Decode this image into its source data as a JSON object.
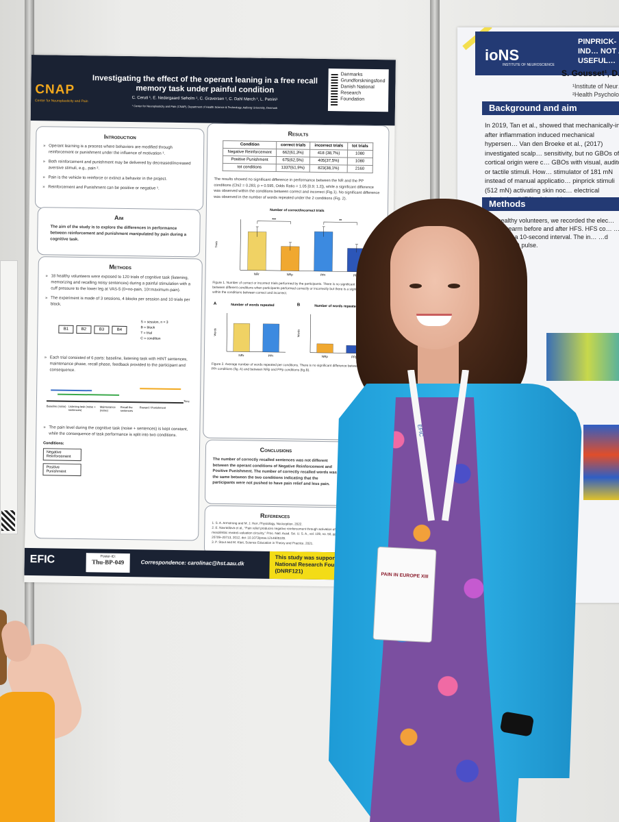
{
  "poster": {
    "org_logo": "CNAP",
    "org_sub": "Center for Neuroplasticity and Pain",
    "title": "Investigating the effect of the operant leaning in a free recall memory task under painful condition",
    "authors": "C. Ceruti ¹, E. Nedergaard Søholm ¹, C. Graversen ¹, C. Dahl Mørch ¹, L. Petrini¹",
    "affiliation": "¹ Center for Neuroplasticity and Pain (CNAP), Department of Health Science & Technology, Aalborg University, Denmark",
    "funder_logo": "Danmarks Grundforskningsfond Danish National Research Foundation",
    "intro": {
      "title": "Introduction",
      "items": [
        "Operant learning is a process where behaviors are modified through reinforcement or punishment under the influence of motivation ¹.",
        "Both reinforcement and punishment may be delivered by decreased/increased aversive stimuli, e.g., pain ².",
        "Pain is the vehicle to reinforce or extinct a behavior in the project.",
        "Reinforcement and Punishment can be positive or negative ¹."
      ]
    },
    "aim": {
      "title": "Aim",
      "text": "The aim of the study is to explore the differences in performance between reinforcement and punishment manipulated by pain during a cognitive task."
    },
    "methods": {
      "title": "Methods",
      "items": [
        "18 healthy volunteers were exposed to 120 trials of cognitive task (listening, memorizing and recalling noisy sentences) during a painful stimulation with a cuff pressure to the lower leg at VAS-5 (0=no-pain, 10=maximum-pain).",
        "The experiment is made of 3 sessions, 4 blocks per session and 10 trials per block."
      ],
      "blocks": [
        "B1",
        "B2",
        "B3",
        "B4"
      ],
      "legend": [
        "S = session, n = 3",
        "B = block",
        "T = trial",
        "C = condition"
      ],
      "items2": [
        "Each trial consisted of 6 parts: baseline, listening task with HINT sentences, maintenance phase, recall phase, feedback provided to the participant and consequence.",
        "The pain level during the cognitive task (noise + sentences) is kept constant, while the consequence of task performance is split into two conditions."
      ],
      "timeline_labels": [
        "Baseline (noise)",
        "Listening task (noise + sentences)",
        "Maintenance (noise)",
        "Recall the sentences",
        "Reward / Punishment",
        "Time"
      ],
      "conditions_title": "Conditions:",
      "conditions": [
        "Negative Reinforcement",
        "Positive Punishment"
      ]
    },
    "results": {
      "title": "Results",
      "table_headers": [
        "Condition",
        "correct trials",
        "incorrect trials",
        "tot trials"
      ],
      "table_rows": [
        [
          "Negative Reinforcement",
          "662(61,3%)",
          "418 (38,7%)",
          "1080"
        ],
        [
          "Positive Punishment",
          "675(62,5%)",
          "405(37,5%)",
          "1080"
        ],
        [
          "tot conditions",
          "1337(61,9%)",
          "823(38,1%)",
          "2160"
        ]
      ],
      "text": "The results showed no significant difference in performance between the NR and the PP conditions (Chi2 = 0.283, p = 0.595, Odds Ratio = 1.05 [0.9; 1.2]), while a significant difference was observed within the conditions between correct and incorrect (Fig.1). No significant difference was observed in the number of words repeated under the 2 conditions (Fig. 2).",
      "fig1_caption": "Figure 1. Number of correct or incorrect trials performed by the participants. There is no significant difference between different conditions when participants performed correctly or incorrectly but there is a significant difference within the conditions between correct and incorrect.",
      "fig2_caption": "Figure 2. Average number of words repeated per conditions. There is no significant difference between NRr and PPr conditions (fig. A) and between NRp and PPp conditions (fig.B)."
    },
    "conclusions": {
      "title": "Conclusions",
      "text": "The number of correctly recalled sentences was not different between the operant conditions of Negative Reinforcement and Positive Punishment. The number of correctly recalled words was the same between the two conditions indicating that the participants were not pushed to have pain relief and less pain."
    },
    "references": {
      "title": "References",
      "items": [
        "1. S. A. Armstrong and M. J. Herr, Physiology, Nociception. 2022.",
        "2. E. Navratilova et al., “Pain relief produces negative reinforcement through activation of mesolimbic reward–valuation circuitry,” Proc. Natl. Acad. Sci. U. S. A., vol. 109, no. 50, pp. 20709–20713, 2012, doi: 10.1073/pnas.1214605109.",
        "3. P. Stout and M. Klett, Science Education in Theory and Practice. 2021."
      ]
    },
    "footer": {
      "efic_logo": "EFIC",
      "poster_id_label": "Poster-ID:",
      "poster_id": "Thu-BP-049",
      "correspondence": "Correspondence: carolinac@hst.aau.dk",
      "funding": "This study was supported by the Danish National Research Foundation (DNRF121)"
    }
  },
  "poster2": {
    "logo": "ioNS",
    "logo_sub": "INSTITUTE OF NEUROSCIENCE",
    "title": "PINPRICK-IND… NOT A USEFUL…",
    "authors": "S. Gousset¹, D.",
    "affiliation": "¹Institute of Neur… ²Health Psycholo…",
    "bg_title": "Background and aim",
    "bg_text": "In 2019, Tan et al., showed that mechanically-in… after inflammation induced mechanical hypersen… Van den Broeke et al., (2017) investigated scalp… sensitivity, but no GBOs of cortical origin were c… GBOs with visual, auditory, or tactile stimuli. How… stimulator of 181 mN instead of manual applicatio… pinprick stimuli (512 mN) activating skin noc… electrical stimulation (HFS) of the skin.",
    "methods_title": "Methods",
    "methods_text": "…ty healthy volunteers, we recorded the elec… …tral forearm before and after HFS. HFS co… …elivered in a 10-second interval. The in… …d (rectangular) pulse."
  },
  "chart_data": [
    {
      "type": "bar",
      "title": "Number of correct/incorrect trials",
      "ylabel": "Trials",
      "categories": [
        "NRr",
        "NRp",
        "PPr",
        "PPp"
      ],
      "values": [
        38,
        24,
        39,
        23
      ],
      "errors": [
        5,
        4,
        5,
        4
      ],
      "colors": [
        "#f0d264",
        "#f0a830",
        "#3c8ae0",
        "#2c56b8"
      ],
      "ylim": [
        0,
        50
      ],
      "significance": [
        "***",
        "**"
      ]
    },
    {
      "type": "bar",
      "panel": "A",
      "title": "Number of words repeated",
      "ylabel": "Words",
      "categories": [
        "NRr",
        "PPr"
      ],
      "values": [
        22,
        22
      ],
      "colors": [
        "#f0d264",
        "#3c8ae0"
      ],
      "ylim": [
        0,
        30
      ]
    },
    {
      "type": "bar",
      "panel": "B",
      "title": "Number of words repeated",
      "ylabel": "Words",
      "categories": [
        "NRp",
        "PPp"
      ],
      "values": [
        7,
        6
      ],
      "colors": [
        "#f0a830",
        "#2c56b8"
      ],
      "ylim": [
        0,
        30
      ]
    }
  ],
  "badge": {
    "event": "PAIN IN EUROPE XIII"
  },
  "lanyard": {
    "brand": "EFIC"
  }
}
